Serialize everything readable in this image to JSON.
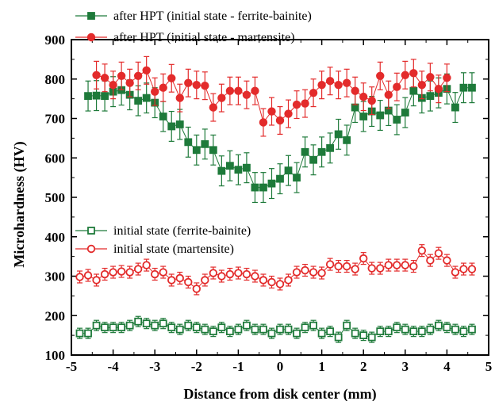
{
  "chart_data": {
    "type": "scatter",
    "xlabel": "Distance from disk center (mm)",
    "ylabel": "Microhardness (HV)",
    "xlim": [
      -5,
      5
    ],
    "ylim": [
      100,
      900
    ],
    "xticks": [
      -5,
      -4,
      -3,
      -2,
      -1,
      0,
      1,
      2,
      3,
      4,
      5
    ],
    "yticks": [
      100,
      200,
      300,
      400,
      500,
      600,
      700,
      800,
      900
    ],
    "grid": false,
    "series": [
      {
        "name": "after HPT (initial state - ferrite-bainite)",
        "color": "#1e7a3a",
        "marker": "filled-square",
        "error": 38,
        "x": [
          -4.6,
          -4.4,
          -4.2,
          -4.0,
          -3.8,
          -3.6,
          -3.4,
          -3.2,
          -3.0,
          -2.8,
          -2.6,
          -2.4,
          -2.2,
          -2.0,
          -1.8,
          -1.6,
          -1.4,
          -1.2,
          -1.0,
          -0.8,
          -0.6,
          -0.4,
          -0.2,
          0.0,
          0.2,
          0.4,
          0.6,
          0.8,
          1.0,
          1.2,
          1.4,
          1.6,
          1.8,
          2.0,
          2.2,
          2.4,
          2.6,
          2.8,
          3.0,
          3.2,
          3.4,
          3.6,
          3.8,
          4.0,
          4.2,
          4.4,
          4.6
        ],
        "y": [
          757,
          758,
          757,
          768,
          772,
          760,
          745,
          752,
          740,
          705,
          680,
          685,
          640,
          620,
          635,
          620,
          567,
          580,
          570,
          575,
          525,
          525,
          535,
          547,
          568,
          550,
          615,
          595,
          615,
          625,
          660,
          645,
          728,
          705,
          718,
          708,
          720,
          697,
          715,
          770,
          752,
          757,
          765,
          775,
          728,
          778,
          778
        ]
      },
      {
        "name": "after HPT (initial state - martensite)",
        "color": "#e32b2b",
        "marker": "filled-circle",
        "error": 35,
        "x": [
          -4.4,
          -4.2,
          -4.0,
          -3.8,
          -3.6,
          -3.4,
          -3.2,
          -3.0,
          -2.8,
          -2.6,
          -2.4,
          -2.2,
          -2.0,
          -1.8,
          -1.6,
          -1.4,
          -1.2,
          -1.0,
          -0.8,
          -0.6,
          -0.4,
          -0.2,
          0.0,
          0.2,
          0.4,
          0.6,
          0.8,
          1.0,
          1.2,
          1.4,
          1.6,
          1.8,
          2.0,
          2.2,
          2.4,
          2.6,
          2.8,
          3.0,
          3.2,
          3.4,
          3.6,
          3.8,
          4.0
        ],
        "y": [
          810,
          803,
          785,
          808,
          790,
          808,
          822,
          768,
          778,
          802,
          752,
          790,
          785,
          783,
          728,
          752,
          770,
          770,
          760,
          770,
          690,
          718,
          695,
          712,
          735,
          738,
          765,
          785,
          795,
          785,
          790,
          770,
          755,
          745,
          808,
          760,
          780,
          810,
          815,
          785,
          805,
          775,
          803
        ]
      },
      {
        "name": "initial state (ferrite-bainite)",
        "color": "#1e7a3a",
        "marker": "open-square",
        "error": 13,
        "x": [
          -4.8,
          -4.6,
          -4.4,
          -4.2,
          -4.0,
          -3.8,
          -3.6,
          -3.4,
          -3.2,
          -3.0,
          -2.8,
          -2.6,
          -2.4,
          -2.2,
          -2.0,
          -1.8,
          -1.6,
          -1.4,
          -1.2,
          -1.0,
          -0.8,
          -0.6,
          -0.4,
          -0.2,
          0.0,
          0.2,
          0.4,
          0.6,
          0.8,
          1.0,
          1.2,
          1.4,
          1.6,
          1.8,
          2.0,
          2.2,
          2.4,
          2.6,
          2.8,
          3.0,
          3.2,
          3.4,
          3.6,
          3.8,
          4.0,
          4.2,
          4.4,
          4.6
        ],
        "y": [
          155,
          155,
          175,
          170,
          170,
          170,
          175,
          185,
          180,
          175,
          180,
          170,
          165,
          175,
          170,
          165,
          160,
          170,
          160,
          165,
          175,
          165,
          165,
          155,
          165,
          165,
          155,
          170,
          175,
          155,
          160,
          145,
          175,
          155,
          150,
          145,
          160,
          160,
          170,
          165,
          160,
          160,
          165,
          175,
          170,
          165,
          160,
          165
        ]
      },
      {
        "name": "initial state (martensite)",
        "color": "#e32b2b",
        "marker": "open-circle",
        "error": 15,
        "x": [
          -4.8,
          -4.6,
          -4.4,
          -4.2,
          -4.0,
          -3.8,
          -3.6,
          -3.4,
          -3.2,
          -3.0,
          -2.8,
          -2.6,
          -2.4,
          -2.2,
          -2.0,
          -1.8,
          -1.6,
          -1.4,
          -1.2,
          -1.0,
          -0.8,
          -0.6,
          -0.4,
          -0.2,
          0.0,
          0.2,
          0.4,
          0.6,
          0.8,
          1.0,
          1.2,
          1.4,
          1.6,
          1.8,
          2.0,
          2.2,
          2.4,
          2.6,
          2.8,
          3.0,
          3.2,
          3.4,
          3.6,
          3.8,
          4.0,
          4.2,
          4.4,
          4.6
        ],
        "y": [
          298,
          302,
          290,
          305,
          310,
          312,
          310,
          318,
          328,
          305,
          310,
          290,
          295,
          285,
          268,
          290,
          308,
          300,
          305,
          308,
          305,
          300,
          290,
          285,
          280,
          290,
          310,
          315,
          310,
          308,
          330,
          325,
          325,
          318,
          345,
          320,
          320,
          328,
          328,
          328,
          325,
          365,
          340,
          358,
          340,
          310,
          318,
          318
        ]
      }
    ],
    "legends": [
      {
        "position": "top-left",
        "entries": [
          0,
          1
        ]
      },
      {
        "position": "left",
        "entries": [
          2,
          3
        ]
      }
    ]
  }
}
